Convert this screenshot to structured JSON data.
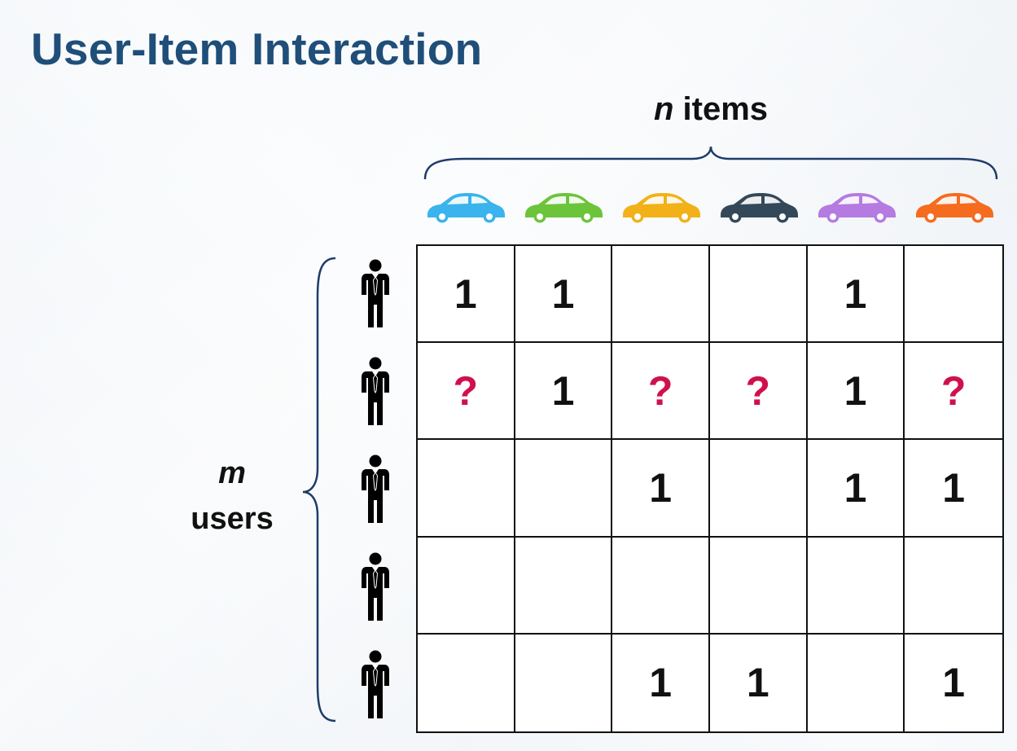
{
  "title": "User-Item Interaction",
  "items_label": {
    "var": "n",
    "text": " items"
  },
  "users_label": {
    "var": "m",
    "text": "users"
  },
  "items": [
    {
      "icon": "car-icon",
      "color": "#3bb3ec"
    },
    {
      "icon": "car-icon",
      "color": "#6cc43b"
    },
    {
      "icon": "car-icon",
      "color": "#f2b118"
    },
    {
      "icon": "car-icon",
      "color": "#33495a"
    },
    {
      "icon": "car-icon",
      "color": "#b57be0"
    },
    {
      "icon": "car-icon",
      "color": "#f56c1f"
    }
  ],
  "users": [
    {
      "icon": "person-icon"
    },
    {
      "icon": "person-icon"
    },
    {
      "icon": "person-icon"
    },
    {
      "icon": "person-icon"
    },
    {
      "icon": "person-icon"
    }
  ],
  "matrix": [
    [
      "1",
      "1",
      "",
      "",
      "1",
      ""
    ],
    [
      "?",
      "1",
      "?",
      "?",
      "1",
      "?"
    ],
    [
      "",
      "",
      "1",
      "",
      "1",
      "1"
    ],
    [
      "",
      "",
      "",
      "",
      "",
      ""
    ],
    [
      "",
      "",
      "1",
      "1",
      "",
      "1"
    ]
  ],
  "colors": {
    "title": "#1f4e79",
    "brace": "#1f3b6b",
    "unknown": "#d0104c"
  }
}
